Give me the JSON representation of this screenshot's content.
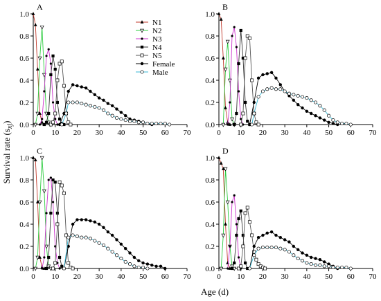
{
  "figure": {
    "xlabel": "Age (d)",
    "ylabel": "Survival rate (s",
    "ylabel_sub": "xj",
    "ylabel_close": ")"
  },
  "legend": {
    "placement": "panel A, top-right inside plot",
    "entries": [
      {
        "name": "N1",
        "color": "#c0392b",
        "marker": "triangle-up-filled"
      },
      {
        "name": "N2",
        "color": "#2ecc40",
        "marker": "triangle-down-open"
      },
      {
        "name": "N3",
        "color": "#cc33cc",
        "marker": "star-filled"
      },
      {
        "name": "N4",
        "color": "#333333",
        "marker": "square-filled"
      },
      {
        "name": "N5",
        "color": "#555555",
        "marker": "square-open"
      },
      {
        "name": "Female",
        "color": "#000000",
        "marker": "circle-filled"
      },
      {
        "name": "Male",
        "color": "#39b7d4",
        "marker": "circle-open"
      }
    ]
  },
  "chart_data": [
    {
      "panel": "A",
      "type": "line",
      "xlim": [
        0,
        70
      ],
      "ylim": [
        0,
        1.0
      ],
      "xticks": [
        0,
        10,
        20,
        30,
        40,
        50,
        60,
        70
      ],
      "yticks": [
        0.0,
        0.2,
        0.4,
        0.6,
        0.8,
        1.0
      ],
      "series": [
        {
          "name": "N1",
          "x": [
            0,
            1,
            2,
            3,
            4,
            5
          ],
          "y": [
            1.0,
            0.9,
            0.5,
            0.1,
            0.02,
            0
          ]
        },
        {
          "name": "N2",
          "x": [
            1,
            2,
            3,
            4,
            5,
            6,
            7,
            8
          ],
          "y": [
            0,
            0.1,
            0.6,
            0.88,
            0.45,
            0.1,
            0.02,
            0
          ]
        },
        {
          "name": "N3",
          "x": [
            3,
            4,
            5,
            6,
            7,
            8,
            9,
            10,
            11
          ],
          "y": [
            0,
            0.05,
            0.3,
            0.62,
            0.68,
            0.55,
            0.2,
            0.05,
            0
          ]
        },
        {
          "name": "N4",
          "x": [
            5,
            6,
            7,
            8,
            9,
            10,
            11,
            12,
            13,
            14
          ],
          "y": [
            0,
            0.02,
            0.1,
            0.45,
            0.62,
            0.5,
            0.2,
            0.05,
            0.01,
            0
          ]
        },
        {
          "name": "N5",
          "x": [
            8,
            9,
            10,
            11,
            12,
            13,
            14,
            15,
            16,
            17
          ],
          "y": [
            0,
            0.02,
            0.1,
            0.4,
            0.55,
            0.57,
            0.35,
            0.1,
            0.02,
            0
          ]
        },
        {
          "name": "Female",
          "x": [
            12,
            14,
            16,
            18,
            20,
            22,
            24,
            26,
            28,
            30,
            32,
            34,
            36,
            38,
            40,
            42,
            44,
            46,
            48,
            50,
            52,
            54
          ],
          "y": [
            0,
            0.1,
            0.3,
            0.36,
            0.35,
            0.34,
            0.33,
            0.3,
            0.27,
            0.24,
            0.22,
            0.19,
            0.17,
            0.14,
            0.11,
            0.08,
            0.05,
            0.04,
            0.03,
            0.02,
            0.01,
            0
          ]
        },
        {
          "name": "Male",
          "x": [
            13,
            15,
            16,
            18,
            20,
            22,
            24,
            26,
            28,
            30,
            32,
            34,
            36,
            38,
            40,
            42,
            44,
            46,
            48,
            50,
            52,
            54,
            56,
            58,
            60,
            62
          ],
          "y": [
            0,
            0.1,
            0.2,
            0.2,
            0.2,
            0.19,
            0.18,
            0.17,
            0.16,
            0.15,
            0.13,
            0.1,
            0.08,
            0.06,
            0.05,
            0.04,
            0.03,
            0.03,
            0.02,
            0.02,
            0.01,
            0.01,
            0.01,
            0.01,
            0.01,
            0
          ]
        }
      ]
    },
    {
      "panel": "B",
      "type": "line",
      "xlim": [
        0,
        70
      ],
      "ylim": [
        0,
        1.0
      ],
      "xticks": [
        0,
        10,
        20,
        30,
        40,
        50,
        60,
        70
      ],
      "yticks": [
        0.0,
        0.2,
        0.4,
        0.6,
        0.8,
        1.0
      ],
      "series": [
        {
          "name": "N1",
          "x": [
            0,
            1,
            2,
            3,
            4,
            5
          ],
          "y": [
            1.0,
            0.95,
            0.6,
            0.15,
            0.02,
            0
          ]
        },
        {
          "name": "N2",
          "x": [
            2,
            3,
            4,
            5,
            6,
            7
          ],
          "y": [
            0,
            0.5,
            0.75,
            0.4,
            0.05,
            0
          ]
        },
        {
          "name": "N3",
          "x": [
            4,
            5,
            6,
            7,
            8,
            9,
            10,
            11
          ],
          "y": [
            0,
            0.2,
            0.8,
            0.88,
            0.7,
            0.3,
            0.05,
            0
          ]
        },
        {
          "name": "N4",
          "x": [
            7,
            8,
            9,
            10,
            11,
            12,
            13,
            14
          ],
          "y": [
            0,
            0.1,
            0.55,
            0.85,
            0.6,
            0.2,
            0.03,
            0
          ]
        },
        {
          "name": "N5",
          "x": [
            10,
            11,
            12,
            13,
            14,
            15,
            16,
            17,
            18
          ],
          "y": [
            0,
            0.1,
            0.6,
            0.8,
            0.78,
            0.4,
            0.1,
            0.02,
            0
          ]
        },
        {
          "name": "Female",
          "x": [
            14,
            16,
            18,
            20,
            22,
            24,
            26,
            28,
            30,
            32,
            34,
            36,
            38,
            40,
            42,
            44,
            46,
            48,
            50,
            52,
            54
          ],
          "y": [
            0,
            0.2,
            0.42,
            0.45,
            0.46,
            0.47,
            0.42,
            0.36,
            0.3,
            0.26,
            0.22,
            0.18,
            0.15,
            0.12,
            0.1,
            0.08,
            0.06,
            0.04,
            0.02,
            0.01,
            0
          ]
        },
        {
          "name": "Male",
          "x": [
            15,
            16,
            18,
            20,
            22,
            24,
            26,
            28,
            30,
            32,
            34,
            36,
            38,
            40,
            42,
            44,
            46,
            48,
            50,
            52,
            54,
            56,
            58,
            60
          ],
          "y": [
            0,
            0.1,
            0.25,
            0.3,
            0.32,
            0.33,
            0.32,
            0.32,
            0.3,
            0.28,
            0.27,
            0.26,
            0.25,
            0.24,
            0.22,
            0.2,
            0.17,
            0.13,
            0.08,
            0.04,
            0.02,
            0.01,
            0.01,
            0
          ]
        }
      ]
    },
    {
      "panel": "C",
      "type": "line",
      "xlim": [
        0,
        70
      ],
      "ylim": [
        0,
        1.0
      ],
      "xticks": [
        0,
        10,
        20,
        30,
        40,
        50,
        60,
        70
      ],
      "yticks": [
        0.0,
        0.2,
        0.4,
        0.6,
        0.8,
        1.0
      ],
      "series": [
        {
          "name": "N1",
          "x": [
            0,
            1,
            2,
            3,
            4,
            5
          ],
          "y": [
            1.0,
            0.98,
            0.6,
            0.1,
            0.01,
            0
          ]
        },
        {
          "name": "N2",
          "x": [
            1,
            2,
            3,
            4,
            5,
            6,
            7,
            8
          ],
          "y": [
            0,
            0.1,
            0.6,
            1.0,
            0.7,
            0.2,
            0.02,
            0
          ]
        },
        {
          "name": "N3",
          "x": [
            4,
            5,
            6,
            7,
            8,
            9,
            10,
            11,
            12
          ],
          "y": [
            0,
            0.1,
            0.5,
            0.8,
            0.82,
            0.6,
            0.2,
            0.05,
            0
          ]
        },
        {
          "name": "N4",
          "x": [
            6,
            7,
            8,
            9,
            10,
            11,
            12,
            13,
            14
          ],
          "y": [
            0,
            0.1,
            0.5,
            0.8,
            0.78,
            0.5,
            0.1,
            0.02,
            0
          ]
        },
        {
          "name": "N5",
          "x": [
            9,
            10,
            11,
            12,
            13,
            14,
            15,
            16,
            17,
            18
          ],
          "y": [
            0,
            0.05,
            0.4,
            0.78,
            0.75,
            0.68,
            0.3,
            0.05,
            0.01,
            0
          ]
        },
        {
          "name": "Female",
          "x": [
            14,
            16,
            18,
            20,
            22,
            24,
            26,
            28,
            30,
            32,
            34,
            36,
            38,
            40,
            42,
            44,
            46,
            48,
            50,
            52,
            54,
            56,
            58,
            60
          ],
          "y": [
            0,
            0.2,
            0.4,
            0.44,
            0.44,
            0.44,
            0.43,
            0.42,
            0.4,
            0.37,
            0.33,
            0.3,
            0.26,
            0.22,
            0.18,
            0.14,
            0.1,
            0.07,
            0.05,
            0.04,
            0.03,
            0.02,
            0.02,
            0
          ]
        },
        {
          "name": "Male",
          "x": [
            14,
            16,
            18,
            20,
            22,
            24,
            26,
            28,
            30,
            32,
            34,
            36,
            38,
            40,
            42,
            44,
            46,
            48,
            50,
            52
          ],
          "y": [
            0,
            0.28,
            0.3,
            0.29,
            0.28,
            0.28,
            0.27,
            0.25,
            0.23,
            0.21,
            0.18,
            0.15,
            0.12,
            0.09,
            0.06,
            0.04,
            0.02,
            0.01,
            0.01,
            0
          ]
        }
      ]
    },
    {
      "panel": "D",
      "type": "line",
      "xlim": [
        0,
        70
      ],
      "ylim": [
        0,
        1.0
      ],
      "xticks": [
        0,
        10,
        20,
        30,
        40,
        50,
        60,
        70
      ],
      "yticks": [
        0.0,
        0.2,
        0.4,
        0.6,
        0.8,
        1.0
      ],
      "series": [
        {
          "name": "N1",
          "x": [
            0,
            1,
            2,
            3,
            4,
            5
          ],
          "y": [
            1.0,
            0.95,
            0.9,
            0.4,
            0.05,
            0
          ]
        },
        {
          "name": "N2",
          "x": [
            1,
            2,
            3,
            4,
            5,
            6,
            7
          ],
          "y": [
            0,
            0.3,
            0.9,
            0.6,
            0.2,
            0.02,
            0
          ]
        },
        {
          "name": "N3",
          "x": [
            4,
            5,
            6,
            7,
            8,
            9,
            10
          ],
          "y": [
            0,
            0.2,
            0.6,
            0.66,
            0.4,
            0.1,
            0
          ]
        },
        {
          "name": "N4",
          "x": [
            6,
            7,
            8,
            9,
            10,
            11,
            12,
            13
          ],
          "y": [
            0,
            0.05,
            0.3,
            0.45,
            0.52,
            0.3,
            0.05,
            0
          ]
        },
        {
          "name": "N5",
          "x": [
            9,
            10,
            11,
            12,
            13,
            14,
            15,
            16,
            17,
            18,
            19,
            20,
            21
          ],
          "y": [
            0,
            0.02,
            0.2,
            0.5,
            0.55,
            0.42,
            0.3,
            0.15,
            0.08,
            0.04,
            0.02,
            0.01,
            0
          ]
        },
        {
          "name": "Female",
          "x": [
            14,
            16,
            18,
            20,
            22,
            24,
            26,
            28,
            30,
            32,
            34,
            36,
            38,
            40,
            42,
            44,
            46,
            48,
            50,
            52,
            54
          ],
          "y": [
            0,
            0.2,
            0.28,
            0.3,
            0.32,
            0.33,
            0.3,
            0.28,
            0.26,
            0.24,
            0.2,
            0.17,
            0.14,
            0.12,
            0.1,
            0.09,
            0.08,
            0.06,
            0.04,
            0.02,
            0
          ]
        },
        {
          "name": "Male",
          "x": [
            14,
            16,
            18,
            20,
            22,
            24,
            26,
            28,
            30,
            32,
            34,
            36,
            38,
            40,
            42,
            44,
            46,
            48,
            50,
            52,
            54,
            56,
            58,
            60
          ],
          "y": [
            0,
            0.12,
            0.18,
            0.19,
            0.19,
            0.19,
            0.19,
            0.18,
            0.17,
            0.15,
            0.12,
            0.09,
            0.07,
            0.05,
            0.04,
            0.03,
            0.03,
            0.02,
            0.02,
            0.01,
            0.01,
            0.01,
            0.01,
            0
          ]
        }
      ]
    }
  ]
}
